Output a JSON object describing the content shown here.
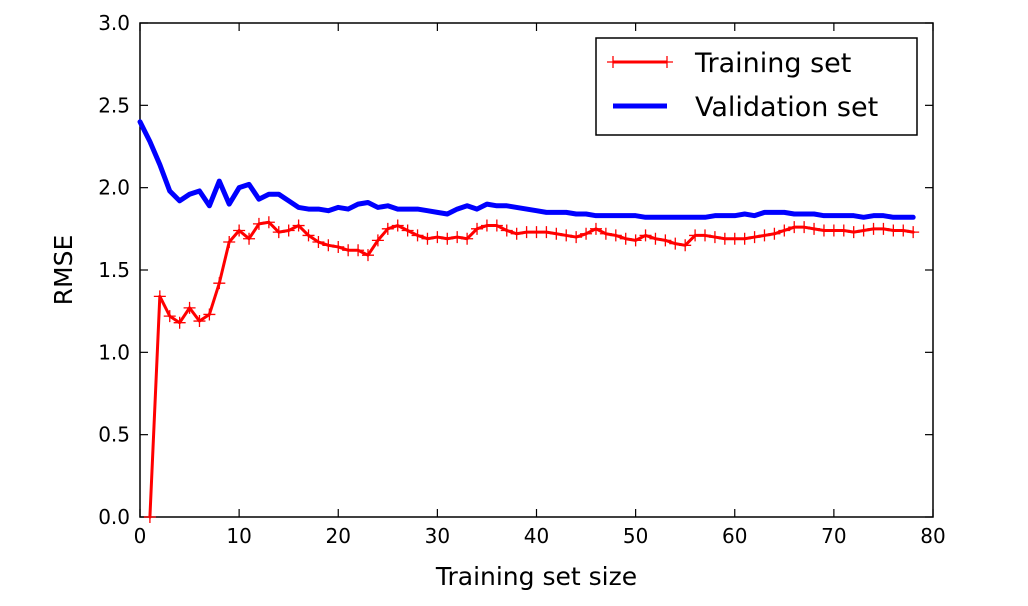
{
  "chart_data": {
    "type": "line",
    "title": "",
    "xlabel": "Training set size",
    "ylabel": "RMSE",
    "xlim": [
      0,
      80
    ],
    "ylim": [
      0,
      3.0
    ],
    "x_ticks": [
      "0",
      "10",
      "20",
      "30",
      "40",
      "50",
      "60",
      "70",
      "80"
    ],
    "y_ticks": [
      "0.0",
      "0.5",
      "1.0",
      "1.5",
      "2.0",
      "2.5",
      "3.0"
    ],
    "grid": false,
    "legend_position": "top-right",
    "series": [
      {
        "name": "Training set",
        "color": "#ff0000",
        "marker": "plus",
        "x": [
          1,
          2,
          3,
          4,
          5,
          6,
          7,
          8,
          9,
          10,
          11,
          12,
          13,
          14,
          15,
          16,
          17,
          18,
          19,
          20,
          21,
          22,
          23,
          24,
          25,
          26,
          27,
          28,
          29,
          30,
          31,
          32,
          33,
          34,
          35,
          36,
          37,
          38,
          39,
          40,
          41,
          42,
          43,
          44,
          45,
          46,
          47,
          48,
          49,
          50,
          51,
          52,
          53,
          54,
          55,
          56,
          57,
          58,
          59,
          60,
          61,
          62,
          63,
          64,
          65,
          66,
          67,
          68,
          69,
          70,
          71,
          72,
          73,
          74,
          75,
          76,
          77,
          78
        ],
        "values": [
          0.0,
          1.34,
          1.22,
          1.18,
          1.27,
          1.19,
          1.23,
          1.42,
          1.67,
          1.74,
          1.69,
          1.78,
          1.79,
          1.73,
          1.74,
          1.77,
          1.71,
          1.67,
          1.65,
          1.64,
          1.62,
          1.62,
          1.59,
          1.68,
          1.75,
          1.77,
          1.74,
          1.71,
          1.69,
          1.7,
          1.69,
          1.7,
          1.69,
          1.75,
          1.77,
          1.77,
          1.74,
          1.72,
          1.73,
          1.73,
          1.73,
          1.72,
          1.71,
          1.7,
          1.72,
          1.75,
          1.72,
          1.71,
          1.69,
          1.68,
          1.71,
          1.69,
          1.68,
          1.66,
          1.65,
          1.71,
          1.71,
          1.7,
          1.69,
          1.69,
          1.69,
          1.7,
          1.71,
          1.72,
          1.74,
          1.76,
          1.76,
          1.75,
          1.74,
          1.74,
          1.74,
          1.73,
          1.74,
          1.75,
          1.75,
          1.74,
          1.74,
          1.73
        ]
      },
      {
        "name": "Validation set",
        "color": "#0000ff",
        "marker": "none",
        "x": [
          0,
          1,
          2,
          3,
          4,
          5,
          6,
          7,
          8,
          9,
          10,
          11,
          12,
          13,
          14,
          15,
          16,
          17,
          18,
          19,
          20,
          21,
          22,
          23,
          24,
          25,
          26,
          27,
          28,
          29,
          30,
          31,
          32,
          33,
          34,
          35,
          36,
          37,
          38,
          39,
          40,
          41,
          42,
          43,
          44,
          45,
          46,
          47,
          48,
          49,
          50,
          51,
          52,
          53,
          54,
          55,
          56,
          57,
          58,
          59,
          60,
          61,
          62,
          63,
          64,
          65,
          66,
          67,
          68,
          69,
          70,
          71,
          72,
          73,
          74,
          75,
          76,
          77,
          78
        ],
        "values": [
          2.4,
          2.28,
          2.14,
          1.98,
          1.92,
          1.96,
          1.98,
          1.89,
          2.04,
          1.9,
          2.0,
          2.02,
          1.93,
          1.96,
          1.96,
          1.92,
          1.88,
          1.87,
          1.87,
          1.86,
          1.88,
          1.87,
          1.9,
          1.91,
          1.88,
          1.89,
          1.87,
          1.87,
          1.87,
          1.86,
          1.85,
          1.84,
          1.87,
          1.89,
          1.87,
          1.9,
          1.89,
          1.89,
          1.88,
          1.87,
          1.86,
          1.85,
          1.85,
          1.85,
          1.84,
          1.84,
          1.83,
          1.83,
          1.83,
          1.83,
          1.83,
          1.82,
          1.82,
          1.82,
          1.82,
          1.82,
          1.82,
          1.82,
          1.83,
          1.83,
          1.83,
          1.84,
          1.83,
          1.85,
          1.85,
          1.85,
          1.84,
          1.84,
          1.84,
          1.83,
          1.83,
          1.83,
          1.83,
          1.82,
          1.83,
          1.83,
          1.82,
          1.82,
          1.82
        ]
      }
    ]
  }
}
